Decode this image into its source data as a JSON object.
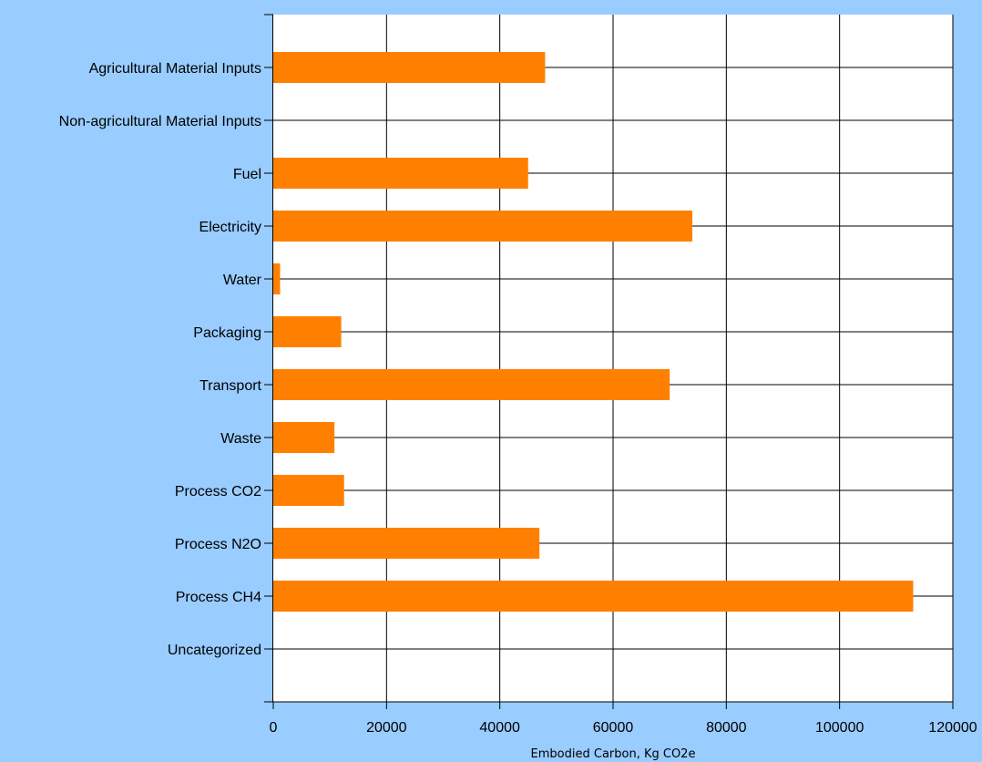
{
  "chart_data": {
    "type": "bar",
    "orientation": "horizontal",
    "categories": [
      "Agricultural Material Inputs",
      "Non-agricultural Material Inputs",
      "Fuel",
      "Electricity",
      "Water",
      "Packaging",
      "Transport",
      "Waste",
      "Process CO2",
      "Process N2O",
      "Process CH4",
      "Uncategorized"
    ],
    "values": [
      48000,
      0,
      45000,
      74000,
      1200,
      12000,
      70000,
      10800,
      12500,
      47000,
      113000,
      0
    ],
    "xlabel": "Embodied Carbon, Kg CO2e",
    "ylabel": "",
    "xlim": [
      0,
      120000
    ],
    "xticks": [
      0,
      20000,
      40000,
      60000,
      80000,
      100000,
      120000
    ],
    "xtick_labels": [
      "0",
      "20000",
      "40000",
      "60000",
      "80000",
      "100000",
      "120000"
    ],
    "grid": true,
    "legend": "none",
    "colors": {
      "background": "#99CCFF",
      "plot_background": "#FFFFFF",
      "bar": "#FF8000",
      "grid": "#000000",
      "axis": "#000000"
    }
  }
}
